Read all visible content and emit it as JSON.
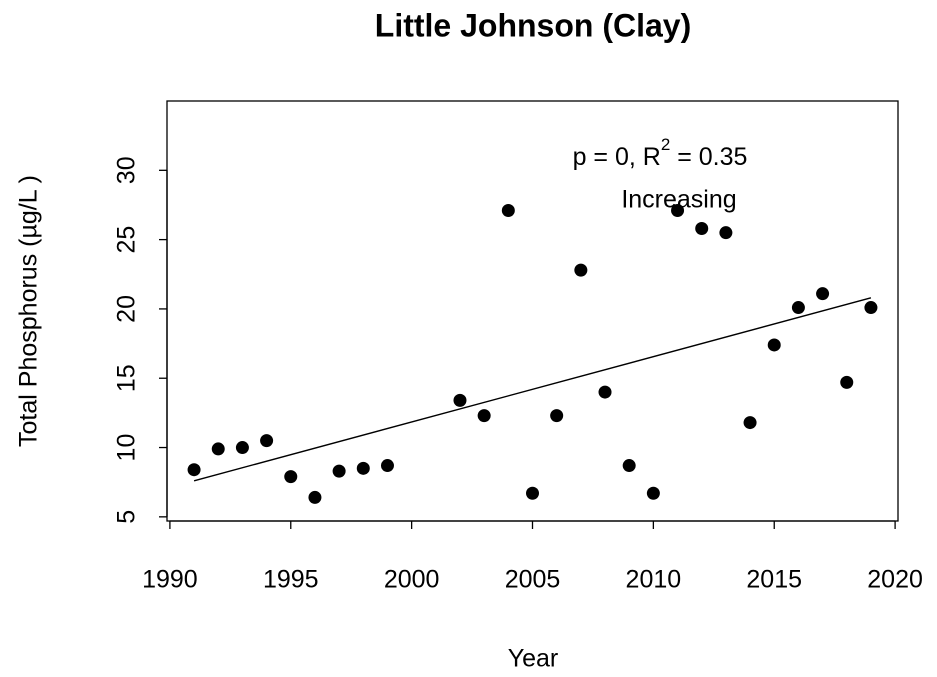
{
  "chart_data": {
    "type": "scatter",
    "title": "Little Johnson (Clay)",
    "x_label": "Year",
    "y_label": "Total Phosphorus (µg/L )",
    "annotation": {
      "text_start": "p = 0, R",
      "superscript": "2",
      "text_end": " = 0.35",
      "trend_label": "Increasing"
    },
    "x": [
      1991,
      1992,
      1993,
      1994,
      1995,
      1996,
      1997,
      1998,
      1999,
      2002,
      2003,
      2004,
      2005,
      2006,
      2007,
      2008,
      2009,
      2010,
      2011,
      2012,
      2013,
      2014,
      2015,
      2016,
      2017,
      2018,
      2019
    ],
    "values": [
      8.4,
      9.9,
      10.0,
      10.5,
      7.9,
      6.4,
      8.3,
      8.5,
      8.7,
      13.4,
      12.3,
      27.1,
      6.7,
      12.3,
      22.8,
      14.0,
      8.7,
      6.7,
      27.1,
      25.8,
      25.5,
      11.8,
      17.4,
      20.1,
      21.1,
      14.7,
      20.1
    ],
    "color": "#000000",
    "trend": {
      "x": [
        1991,
        2019
      ],
      "values": [
        7.6,
        20.8
      ]
    },
    "xlim": [
      1989.88,
      2020.12
    ],
    "xticks": [
      1990,
      1995,
      2000,
      2005,
      2010,
      2015,
      2020
    ],
    "ylim": [
      4.7,
      35
    ],
    "yticks": [
      5,
      10,
      15,
      20,
      25,
      30
    ]
  }
}
